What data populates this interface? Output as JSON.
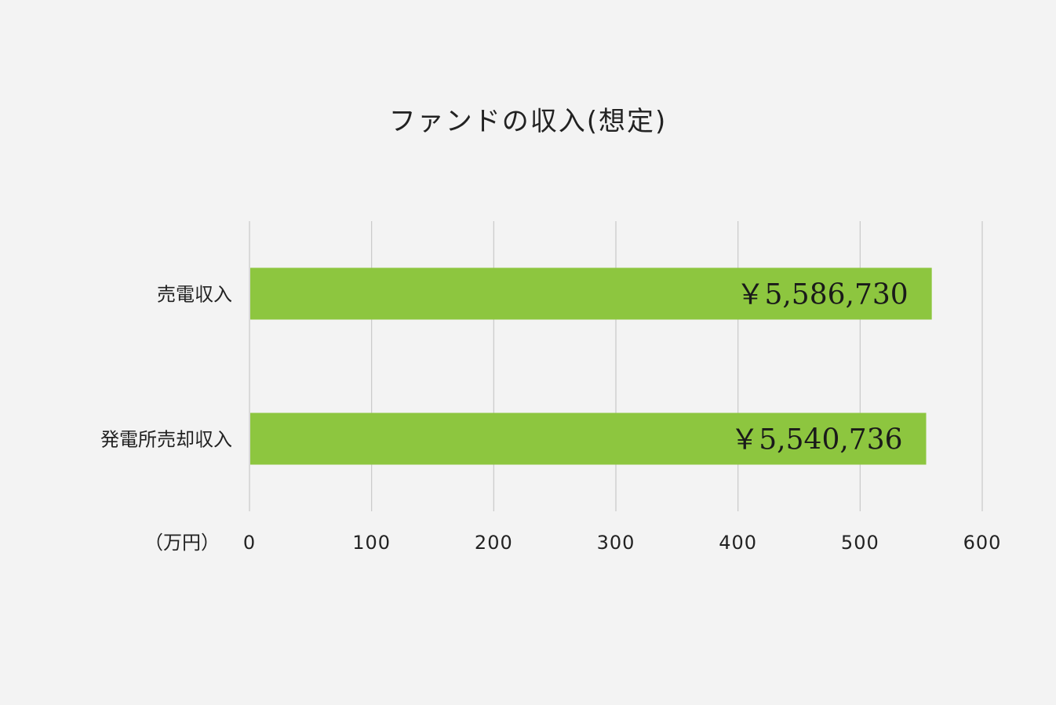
{
  "chart_data": {
    "type": "bar",
    "orientation": "horizontal",
    "title": "ファンドの収入(想定)",
    "unit_label": "（万円）",
    "categories": [
      "売電収入",
      "発電所売却収入"
    ],
    "values": [
      558.673,
      554.0736
    ],
    "data_labels": [
      "￥5,586,730",
      "￥5,540,736"
    ],
    "xlim": [
      0,
      600
    ],
    "x_ticks": [
      0,
      100,
      200,
      300,
      400,
      500,
      600
    ],
    "x_tick_labels": [
      "0",
      "100",
      "200",
      "300",
      "400",
      "500",
      "600"
    ],
    "grid": true,
    "legend": "none",
    "colors": {
      "bar": "#8dc63f",
      "grid": "#c8c8c8",
      "background": "#f3f3f3",
      "text": "#222222"
    }
  }
}
